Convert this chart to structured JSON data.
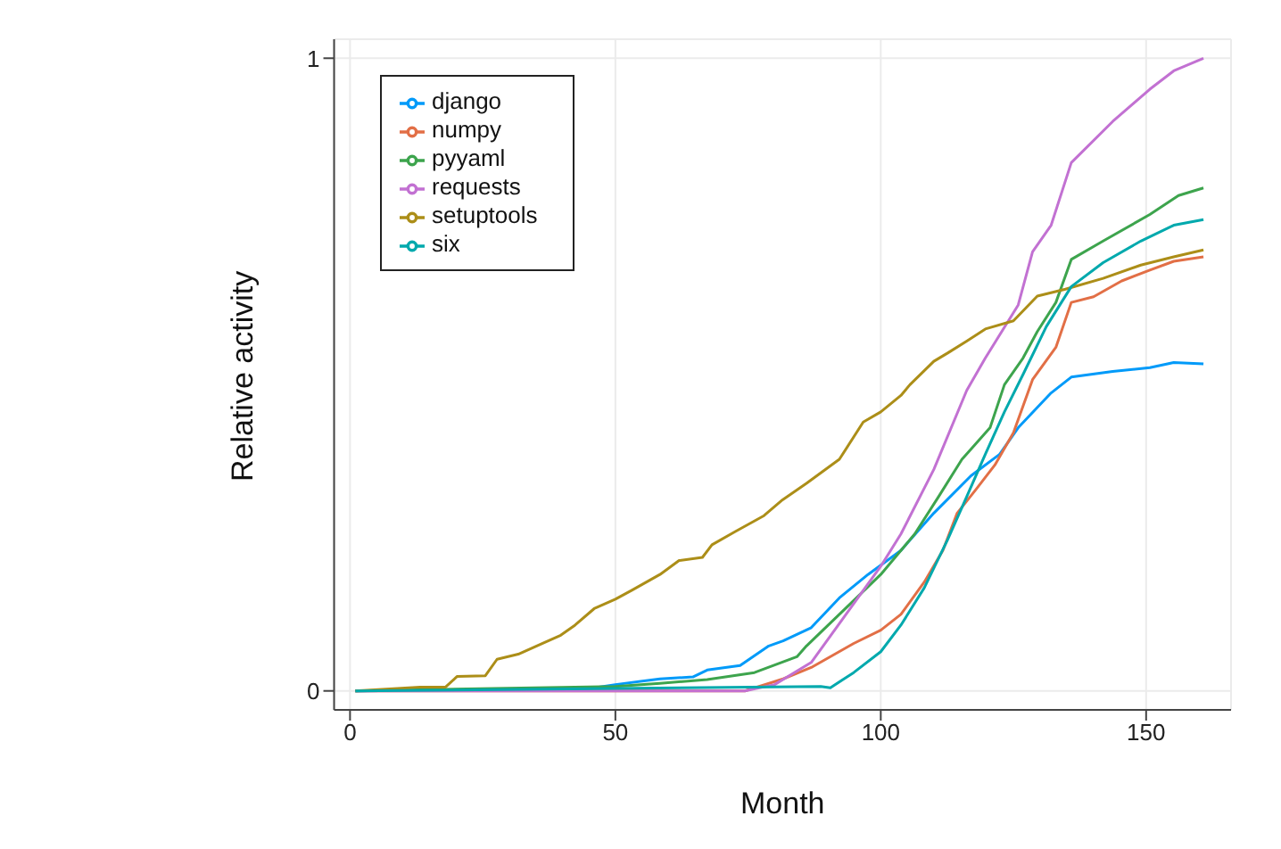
{
  "chart_data": {
    "type": "line",
    "xlabel": "Month",
    "ylabel": "Relative activity",
    "xlim": [
      -3,
      166
    ],
    "xticks": [
      0,
      50,
      100,
      150
    ],
    "ylim": [
      -0.03,
      1.03
    ],
    "yticks": [
      0,
      1
    ],
    "grid": true,
    "legend": "top left",
    "marker": "none",
    "line_style": "solid",
    "series": [
      {
        "name": "django",
        "color": "#009af9",
        "x": [
          1,
          44.6,
          50,
          58.4,
          64.6,
          67.3,
          73.5,
          78.9,
          81.6,
          86.9,
          92.2,
          97.6,
          103.8,
          110,
          117,
          122.4,
          125.9,
          132.1,
          135.9,
          143.7,
          150.7,
          155.2,
          160.8
        ],
        "values": [
          0,
          0.003,
          0.01,
          0.019,
          0.022,
          0.033,
          0.04,
          0.071,
          0.079,
          0.1,
          0.147,
          0.184,
          0.222,
          0.281,
          0.34,
          0.374,
          0.416,
          0.471,
          0.496,
          0.505,
          0.511,
          0.519,
          0.517
        ]
      },
      {
        "name": "numpy",
        "color": "#e26f46",
        "x": [
          1,
          74.4,
          81.6,
          86.9,
          94.9,
          100,
          103.8,
          108.2,
          111.7,
          114.4,
          118,
          121.5,
          125,
          128.6,
          133,
          135.9,
          140.1,
          145.4,
          150.7,
          155.2,
          160.8
        ],
        "values": [
          0,
          0,
          0.019,
          0.037,
          0.075,
          0.096,
          0.121,
          0.172,
          0.222,
          0.281,
          0.319,
          0.357,
          0.408,
          0.492,
          0.543,
          0.614,
          0.623,
          0.648,
          0.665,
          0.679,
          0.686
        ]
      },
      {
        "name": "pyyaml",
        "color": "#3da44d",
        "x": [
          1,
          50,
          58.4,
          67.3,
          76.2,
          84.2,
          86,
          92.2,
          100,
          106.4,
          110.9,
          115.3,
          120.6,
          123.3,
          126.8,
          129.5,
          133,
          135.9,
          141.9,
          150.7,
          156.1,
          160.8
        ],
        "values": [
          0,
          0.007,
          0.012,
          0.018,
          0.029,
          0.054,
          0.071,
          0.121,
          0.184,
          0.248,
          0.307,
          0.366,
          0.416,
          0.484,
          0.526,
          0.568,
          0.614,
          0.682,
          0.711,
          0.753,
          0.783,
          0.795
        ]
      },
      {
        "name": "requests",
        "color": "#c271d2",
        "x": [
          1,
          74.4,
          80,
          86.9,
          100,
          103.8,
          110,
          116.2,
          119.7,
          125.9,
          128.6,
          132.1,
          135.9,
          143.7,
          150.7,
          155.2,
          160.8
        ],
        "values": [
          0,
          0,
          0.01,
          0.045,
          0.197,
          0.248,
          0.35,
          0.475,
          0.526,
          0.61,
          0.694,
          0.736,
          0.835,
          0.9,
          0.951,
          0.98,
          1
        ]
      },
      {
        "name": "setuptools",
        "color": "#ac8e18",
        "x": [
          1,
          13.2,
          18,
          20.2,
          25.5,
          27.7,
          31.7,
          36.2,
          39.7,
          42.4,
          46,
          50,
          53.1,
          58.4,
          62,
          66.4,
          68.2,
          72.6,
          78,
          81.5,
          86,
          92.2,
          96.7,
          100,
          103.8,
          105.5,
          110,
          112.6,
          116.2,
          119.7,
          125,
          129.5,
          134.8,
          141.9,
          149,
          155.2,
          160.8
        ],
        "values": [
          0,
          0.006,
          0.006,
          0.023,
          0.024,
          0.05,
          0.058,
          0.075,
          0.088,
          0.104,
          0.13,
          0.145,
          0.159,
          0.184,
          0.206,
          0.211,
          0.231,
          0.252,
          0.277,
          0.302,
          0.328,
          0.366,
          0.425,
          0.441,
          0.467,
          0.484,
          0.521,
          0.534,
          0.553,
          0.572,
          0.585,
          0.624,
          0.635,
          0.652,
          0.673,
          0.686,
          0.697
        ]
      },
      {
        "name": "six",
        "color": "#00a9ad",
        "x": [
          1,
          88.7,
          90.5,
          94.9,
          100,
          103.8,
          108.2,
          112.6,
          116.2,
          119.7,
          123.3,
          126.8,
          131.2,
          135.9,
          141.9,
          149,
          155.2,
          160.8
        ],
        "values": [
          0,
          0.007,
          0.005,
          0.029,
          0.062,
          0.104,
          0.163,
          0.239,
          0.307,
          0.374,
          0.441,
          0.5,
          0.576,
          0.639,
          0.677,
          0.711,
          0.736,
          0.745
        ]
      }
    ]
  }
}
